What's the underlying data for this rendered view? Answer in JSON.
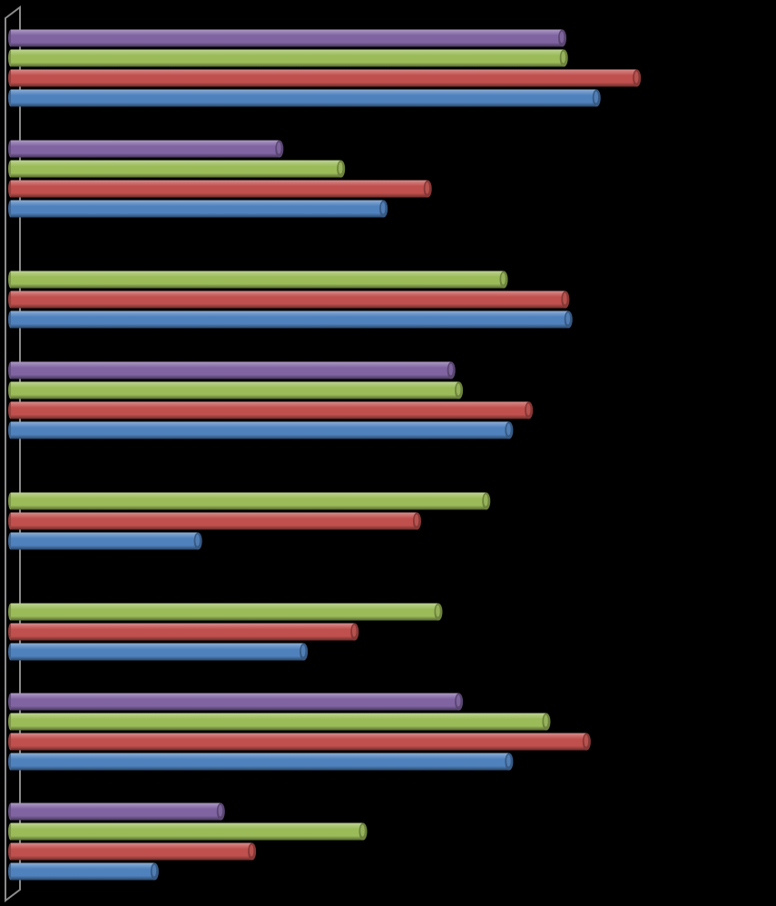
{
  "chart_data": {
    "type": "bar",
    "orientation": "horizontal",
    "style": "3d-cylinder",
    "title": "",
    "xlabel": "",
    "ylabel": "",
    "grid": false,
    "legend": "none",
    "xlim": [
      0,
      100
    ],
    "categories": [
      "",
      "",
      "",
      "",
      "",
      "",
      "",
      ""
    ],
    "series": [
      {
        "color": "#8064A2",
        "values": [
          72.5,
          35.3,
          null,
          57.9,
          null,
          null,
          58.9,
          27.6
        ]
      },
      {
        "color": "#9BBB59",
        "values": [
          72.7,
          43.4,
          64.8,
          58.9,
          62.5,
          56.2,
          70.4,
          46.3
        ]
      },
      {
        "color": "#C0504D",
        "values": [
          82.3,
          54.8,
          72.9,
          68.1,
          53.4,
          45.2,
          75.7,
          31.7
        ]
      },
      {
        "color": "#4F81BD",
        "values": [
          77.0,
          49.0,
          73.3,
          65.5,
          24.6,
          38.5,
          65.5,
          18.9
        ]
      }
    ]
  }
}
